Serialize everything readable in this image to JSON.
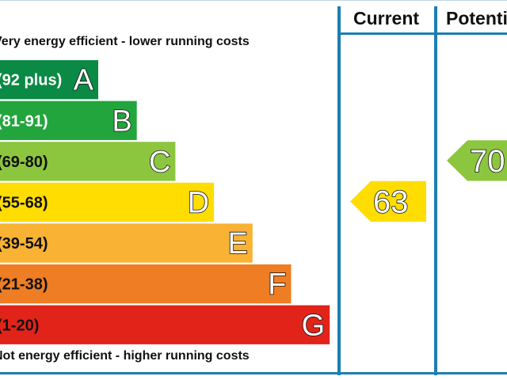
{
  "chart_data": {
    "type": "bar",
    "title": "",
    "top_caption": "Very energy efficient - lower running costs",
    "bottom_caption": "Not energy efficient - higher running costs",
    "columns": [
      "Current",
      "Potential"
    ],
    "bands": [
      {
        "letter": "A",
        "range": "(92 plus)",
        "color": "#0a8a44",
        "range_text_color": "#ffffff"
      },
      {
        "letter": "B",
        "range": "(81-91)",
        "color": "#22a53c",
        "range_text_color": "#ffffff"
      },
      {
        "letter": "C",
        "range": "(69-80)",
        "color": "#8cc63f",
        "range_text_color": "#111111"
      },
      {
        "letter": "D",
        "range": "(55-68)",
        "color": "#ffdd00",
        "range_text_color": "#111111"
      },
      {
        "letter": "E",
        "range": "(39-54)",
        "color": "#f9b233",
        "range_text_color": "#111111"
      },
      {
        "letter": "F",
        "range": "(21-38)",
        "color": "#ee7d23",
        "range_text_color": "#111111"
      },
      {
        "letter": "G",
        "range": "(1-20)",
        "color": "#e2231a",
        "range_text_color": "#111111"
      }
    ],
    "ratings": [
      {
        "column": "Current",
        "value": 63,
        "band": "D",
        "color": "#ffdd00"
      },
      {
        "column": "Potential",
        "value": 70,
        "band": "C",
        "color": "#8cc63f"
      }
    ]
  }
}
